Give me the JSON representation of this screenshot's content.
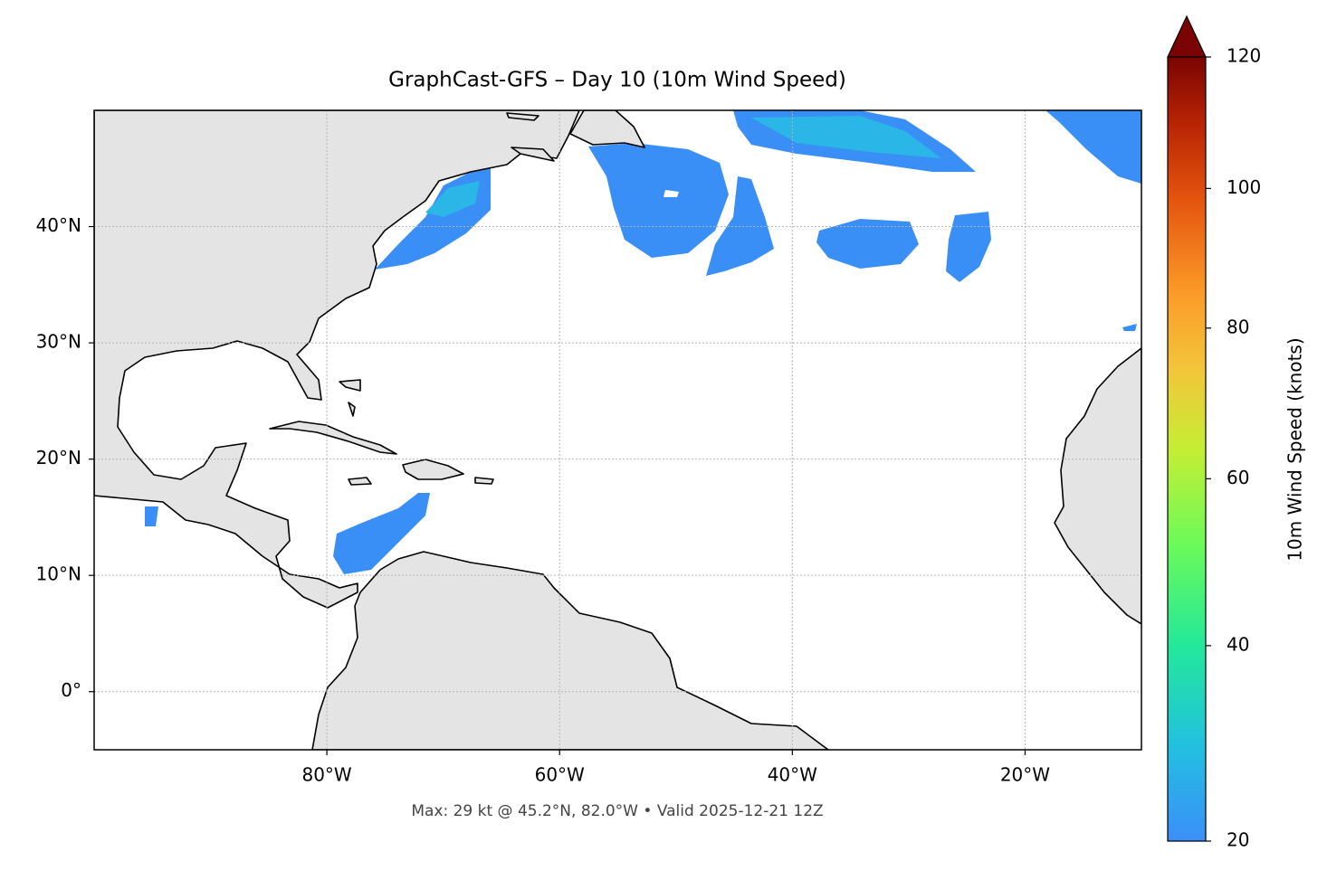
{
  "chart_data": {
    "type": "map",
    "title": "GraphCast-GFS – Day 10 (10m Wind Speed)",
    "footer": "Max: 29 kt @ 45.2°N, 82.0°W • Valid 2025-12-21 12Z",
    "xlim": [
      -100,
      -10
    ],
    "ylim": [
      -5,
      50
    ],
    "xticks": [
      {
        "value": -80,
        "label": "80°W"
      },
      {
        "value": -60,
        "label": "60°W"
      },
      {
        "value": -40,
        "label": "40°W"
      },
      {
        "value": -20,
        "label": "20°W"
      }
    ],
    "yticks": [
      {
        "value": 0,
        "label": "0°"
      },
      {
        "value": 10,
        "label": "10°N"
      },
      {
        "value": 20,
        "label": "20°N"
      },
      {
        "value": 30,
        "label": "30°N"
      },
      {
        "value": 40,
        "label": "40°N"
      }
    ],
    "grid": true,
    "colorbar": {
      "label": "10m Wind Speed (knots)",
      "lim": [
        20,
        120
      ],
      "ticks": [
        20,
        40,
        60,
        80,
        100,
        120
      ],
      "gamma": 0.7,
      "extend": "max"
    }
  }
}
